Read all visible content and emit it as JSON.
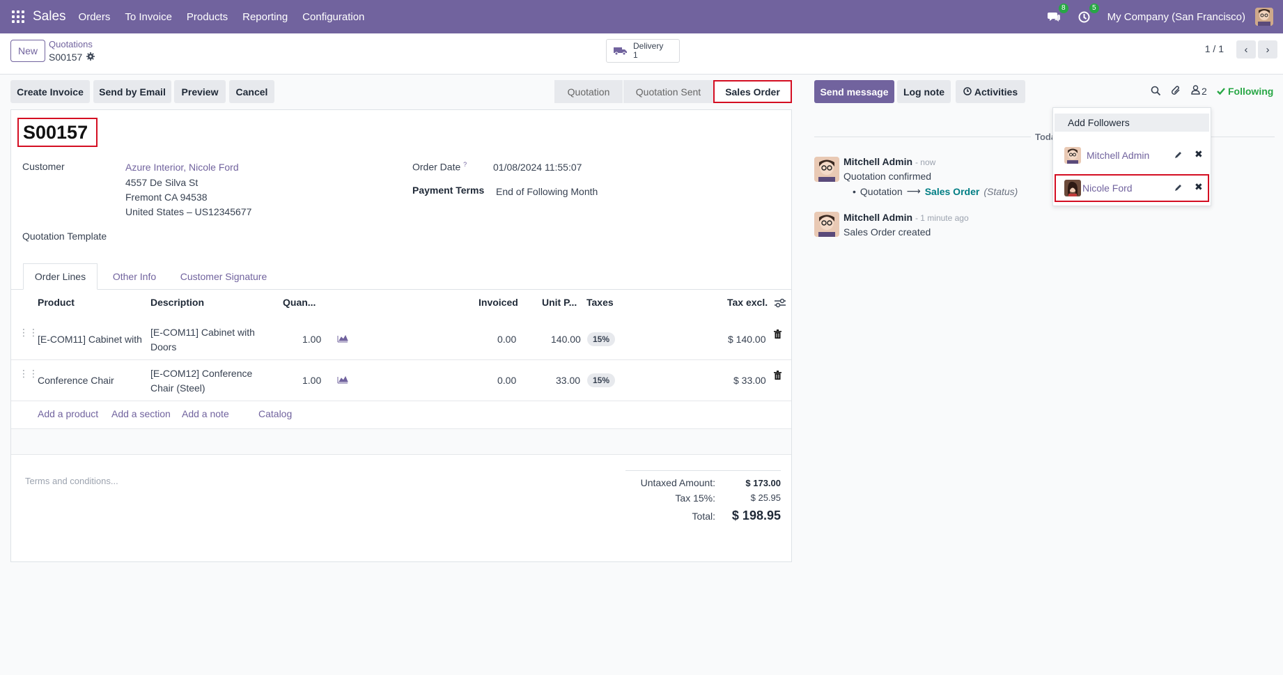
{
  "nav": {
    "app_name": "Sales",
    "menu": [
      "Orders",
      "To Invoice",
      "Products",
      "Reporting",
      "Configuration"
    ],
    "messages_count": "8",
    "activities_count": "5",
    "company": "My Company (San Francisco)"
  },
  "control_panel": {
    "new_label": "New",
    "breadcrumb_parent": "Quotations",
    "breadcrumb_current": "S00157",
    "smart_button": {
      "label": "Delivery",
      "count": "1"
    },
    "pager": "1 / 1"
  },
  "actions": {
    "create_invoice": "Create Invoice",
    "send_by_email": "Send by Email",
    "preview": "Preview",
    "cancel": "Cancel"
  },
  "statusbar": [
    "Quotation",
    "Quotation Sent",
    "Sales Order"
  ],
  "statusbar_active": "Sales Order",
  "form": {
    "name": "S00157",
    "customer_label": "Customer",
    "customer_name": "Azure Interior, Nicole Ford",
    "customer_addr1": "4557 De Silva St",
    "customer_addr2": "Fremont CA 94538",
    "customer_addr3": "United States – US12345677",
    "order_date_label": "Order Date",
    "order_date_help": "?",
    "order_date": "01/08/2024 11:55:07",
    "payment_terms_label": "Payment Terms",
    "payment_terms": "End of Following Month",
    "template_label": "Quotation Template"
  },
  "tabs": [
    "Order Lines",
    "Other Info",
    "Customer Signature"
  ],
  "lines": {
    "headers": {
      "product": "Product",
      "description": "Description",
      "quantity": "Quan...",
      "invoiced": "Invoiced",
      "unit_price": "Unit P...",
      "taxes": "Taxes",
      "subtotal": "Tax excl."
    },
    "rows": [
      {
        "product": "[E-COM11] Cabinet with",
        "desc1": "[E-COM11] Cabinet with",
        "desc2": "Doors",
        "qty": "1.00",
        "invoiced": "0.00",
        "price": "140.00",
        "tax": "15%",
        "subtotal": "$ 140.00"
      },
      {
        "product": "Conference Chair",
        "desc1": "[E-COM12] Conference",
        "desc2": "Chair (Steel)",
        "qty": "1.00",
        "invoiced": "0.00",
        "price": "33.00",
        "tax": "15%",
        "subtotal": "$ 33.00"
      }
    ],
    "add_product": "Add a product",
    "add_section": "Add a section",
    "add_note": "Add a note",
    "catalog": "Catalog"
  },
  "notes_placeholder": "Terms and conditions...",
  "totals": {
    "untaxed_label": "Untaxed Amount:",
    "untaxed": "$ 173.00",
    "tax_label": "Tax 15%:",
    "tax": "$ 25.95",
    "total_label": "Total:",
    "total": "$ 198.95"
  },
  "chatter": {
    "send_message": "Send message",
    "log_note": "Log note",
    "activities": "Activities",
    "followers_count": "2",
    "following": "Following",
    "date_separator": "Toda",
    "messages": [
      {
        "author": "Mitchell Admin",
        "time": "- now",
        "body": "Quotation confirmed",
        "track_old": "Quotation",
        "track_new": "Sales Order",
        "track_field": "(Status)"
      },
      {
        "author": "Mitchell Admin",
        "time": "- 1 minute ago",
        "body": "Sales Order created"
      }
    ]
  },
  "followers_dropdown": {
    "add": "Add Followers",
    "followers": [
      "Mitchell Admin",
      "Nicole Ford"
    ]
  },
  "colors": {
    "brand": "#71639e",
    "highlight": "#d40e22",
    "success": "#28a745"
  }
}
